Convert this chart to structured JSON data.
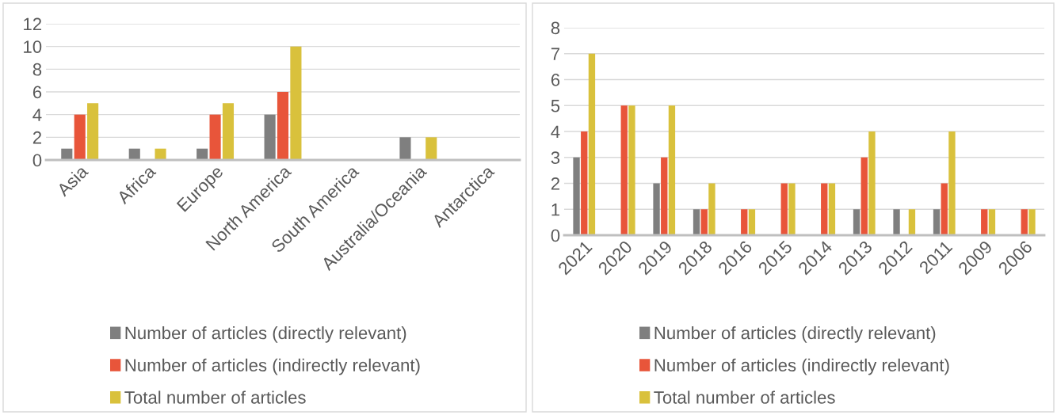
{
  "chart_data": [
    {
      "type": "bar",
      "categories": [
        "Asia",
        "Africa",
        "Europe",
        "North America",
        "South America",
        "Australia/Oceania",
        "Antarctica"
      ],
      "series": [
        {
          "name": "Number of articles (directly relevant)",
          "color": "#7f7f7f",
          "values": [
            1,
            1,
            1,
            4,
            0,
            2,
            0
          ]
        },
        {
          "name": "Number of articles (indirectly relevant)",
          "color": "#e8553a",
          "values": [
            4,
            0,
            4,
            6,
            0,
            0,
            0
          ]
        },
        {
          "name": "Total number of articles",
          "color": "#d9c13c",
          "values": [
            5,
            1,
            5,
            10,
            0,
            2,
            0
          ]
        }
      ],
      "ylim": [
        0,
        12
      ],
      "yticks": [
        0,
        2,
        4,
        6,
        8,
        10,
        12
      ],
      "grid": "y",
      "legend": "bottom"
    },
    {
      "type": "bar",
      "categories": [
        "2021",
        "2020",
        "2019",
        "2018",
        "2016",
        "2015",
        "2014",
        "2013",
        "2012",
        "2011",
        "2009",
        "2006"
      ],
      "series": [
        {
          "name": "Number of articles (directly relevant)",
          "color": "#7f7f7f",
          "values": [
            3,
            0,
            2,
            1,
            0,
            0,
            0,
            1,
            1,
            1,
            0,
            0
          ]
        },
        {
          "name": "Number of articles (indirectly relevant)",
          "color": "#e8553a",
          "values": [
            4,
            5,
            3,
            1,
            1,
            2,
            2,
            3,
            0,
            2,
            1,
            1
          ]
        },
        {
          "name": "Total number of articles",
          "color": "#d9c13c",
          "values": [
            7,
            5,
            5,
            2,
            1,
            2,
            2,
            4,
            1,
            4,
            1,
            1
          ]
        }
      ],
      "ylim": [
        0,
        8
      ],
      "yticks": [
        0,
        1,
        2,
        3,
        4,
        5,
        6,
        7,
        8
      ],
      "grid": "y",
      "legend": "bottom"
    }
  ]
}
